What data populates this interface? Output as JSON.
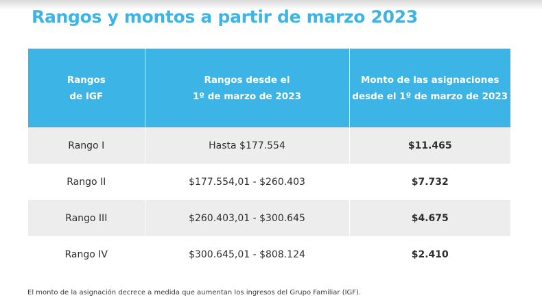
{
  "title": "Rangos y montos a partir de marzo 2023",
  "table": {
    "headers": [
      [
        "Rangos",
        "de IGF"
      ],
      [
        "Rangos desde el",
        "1º de marzo de 2023"
      ],
      [
        "Monto de las asignaciones",
        "desde el 1º de marzo de 2023"
      ]
    ],
    "rows": [
      {
        "rango": "Rango I",
        "desde": "Hasta $177.554",
        "monto": "$11.465"
      },
      {
        "rango": "Rango II",
        "desde": "$177.554,01 - $260.403",
        "monto": "$7.732"
      },
      {
        "rango": "Rango III",
        "desde": "$260.403,01 - $300.645",
        "monto": "$4.675"
      },
      {
        "rango": "Rango IV",
        "desde": "$300.645,01 - $808.124",
        "monto": "$2.410"
      }
    ]
  },
  "footnote": "El monto de la asignación decrece a medida que aumentan los ingresos del Grupo Familiar (IGF).",
  "colors": {
    "accent": "#3cb4e5",
    "row_shade": "#ededed"
  }
}
